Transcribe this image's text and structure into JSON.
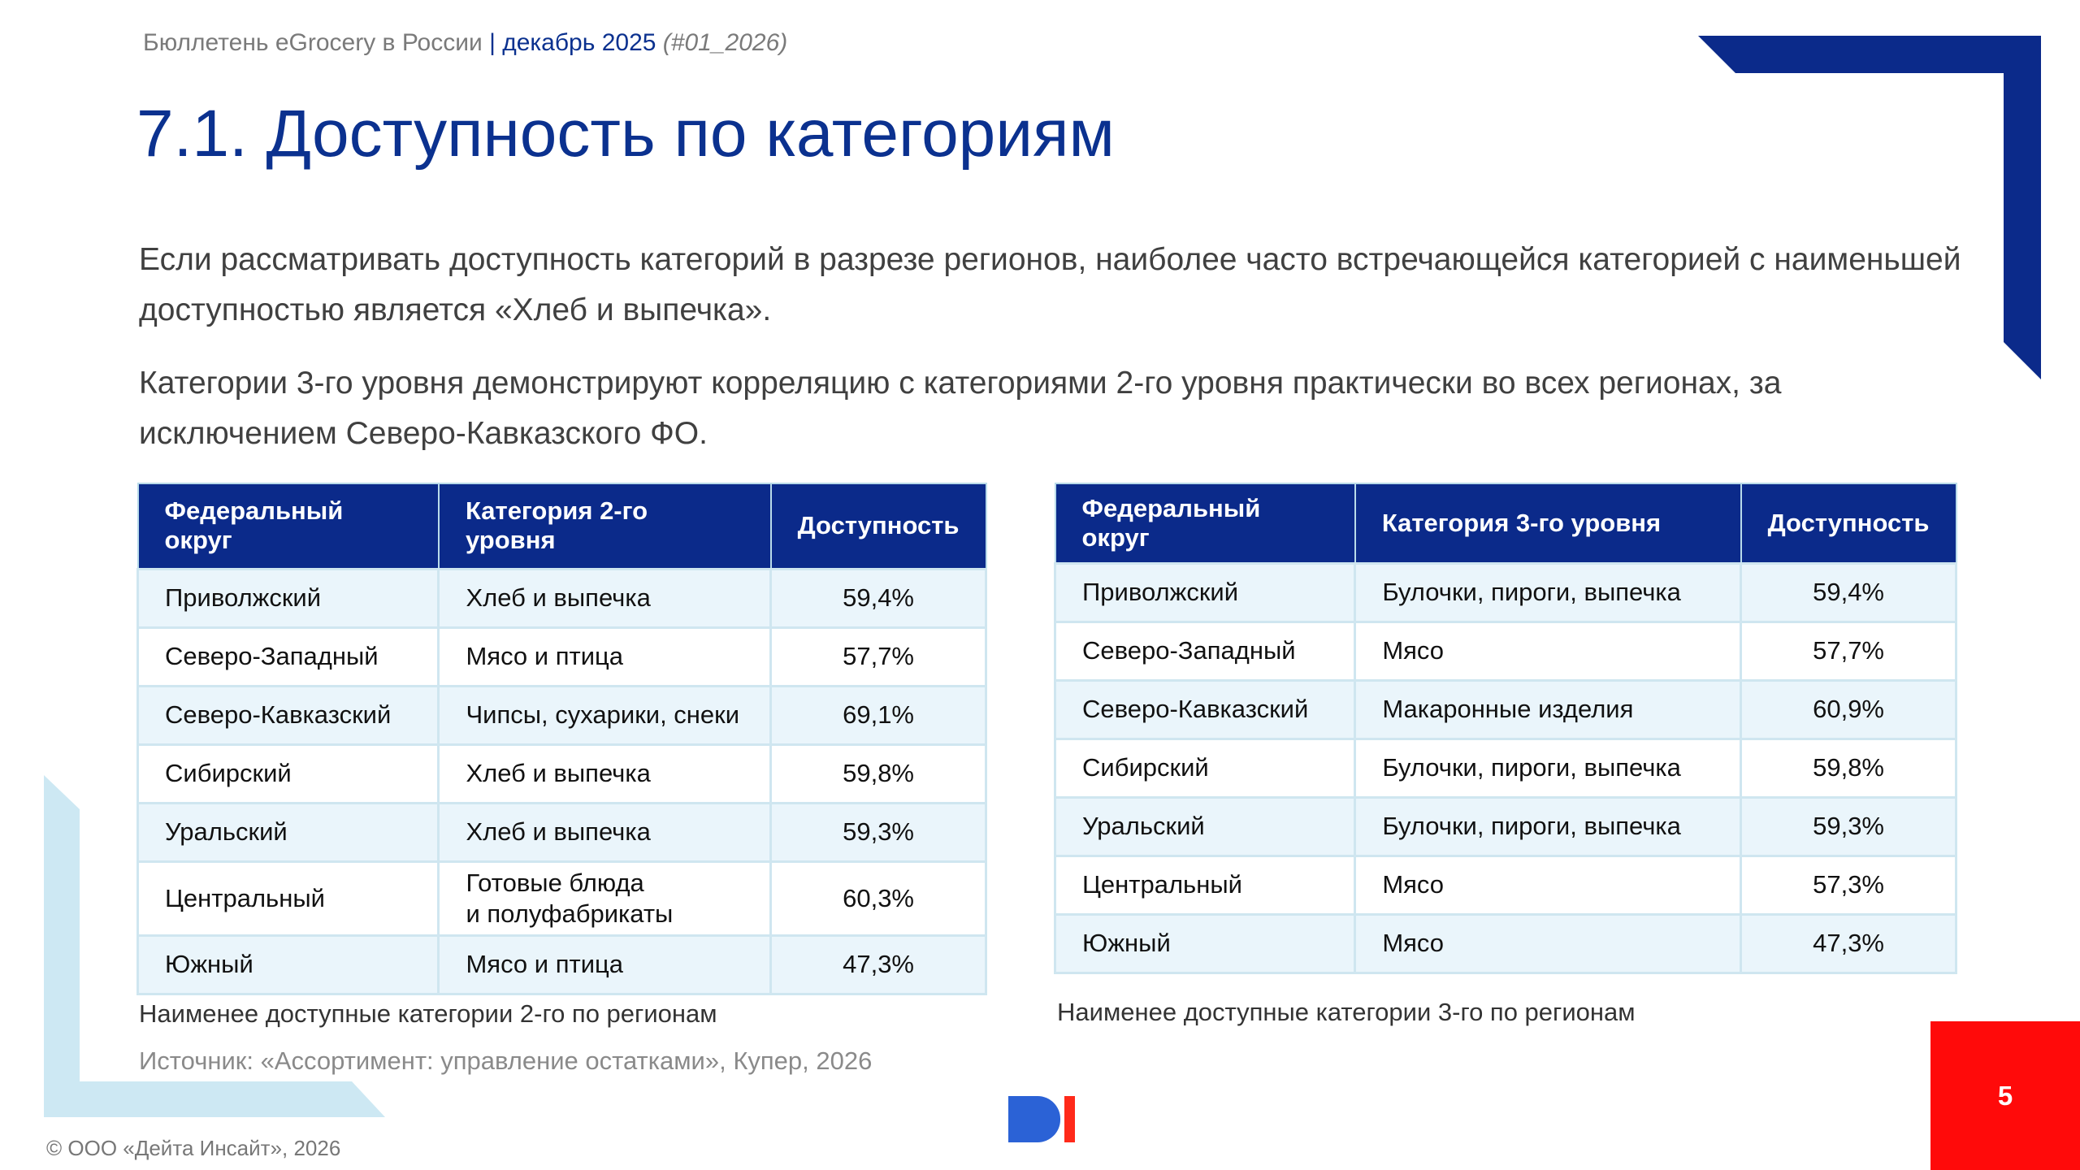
{
  "header": {
    "publication": "Бюллетень eGrocery в России",
    "separator": "|",
    "date": "декабрь 2025",
    "issue": "(#01_2026)"
  },
  "title": "7.1. Доступность по категориям",
  "paragraphs": [
    "Если рассматривать доступность категорий в разрезе регионов, наиболее часто встречающейся категорией с наименьшей доступностью является «Хлеб и выпечка».",
    "Категории 3-го уровня демонстрируют корреляцию с категориями 2-го уровня практически во всех регионах, за исключением Северо-Кавказского ФО."
  ],
  "tables": [
    {
      "columns": [
        "Федеральный округ",
        "Категория 2-го уровня",
        "Доступность"
      ],
      "rows": [
        [
          "Приволжский",
          "Хлеб и выпечка",
          "59,4%"
        ],
        [
          "Северо-Западный",
          "Мясо и птица",
          "57,7%"
        ],
        [
          "Северо-Кавказский",
          "Чипсы, сухарики, снеки",
          "69,1%"
        ],
        [
          "Сибирский",
          "Хлеб и выпечка",
          "59,8%"
        ],
        [
          "Уральский",
          "Хлеб и выпечка",
          "59,3%"
        ],
        [
          "Центральный",
          "Готовые блюда\nи полуфабрикаты",
          "60,3%"
        ],
        [
          "Южный",
          "Мясо и птица",
          "47,3%"
        ]
      ],
      "caption": "Наименее доступные категории 2-го по регионам"
    },
    {
      "columns": [
        "Федеральный округ",
        "Категория 3-го уровня",
        "Доступность"
      ],
      "rows": [
        [
          "Приволжский",
          "Булочки, пироги, выпечка",
          "59,4%"
        ],
        [
          "Северо-Западный",
          "Мясо",
          "57,7%"
        ],
        [
          "Северо-Кавказский",
          "Макаронные изделия",
          "60,9%"
        ],
        [
          "Сибирский",
          "Булочки, пироги, выпечка",
          "59,8%"
        ],
        [
          "Уральский",
          "Булочки, пироги, выпечка",
          "59,3%"
        ],
        [
          "Центральный",
          "Мясо",
          "57,3%"
        ],
        [
          "Южный",
          "Мясо",
          "47,3%"
        ]
      ],
      "caption": "Наименее доступные категории 3-го по регионам"
    }
  ],
  "source": "Источник: «Ассортимент: управление остатками», Купер, 2026",
  "copyright": "© ООО «Дейта Инсайт», 2026",
  "page_number": "5"
}
